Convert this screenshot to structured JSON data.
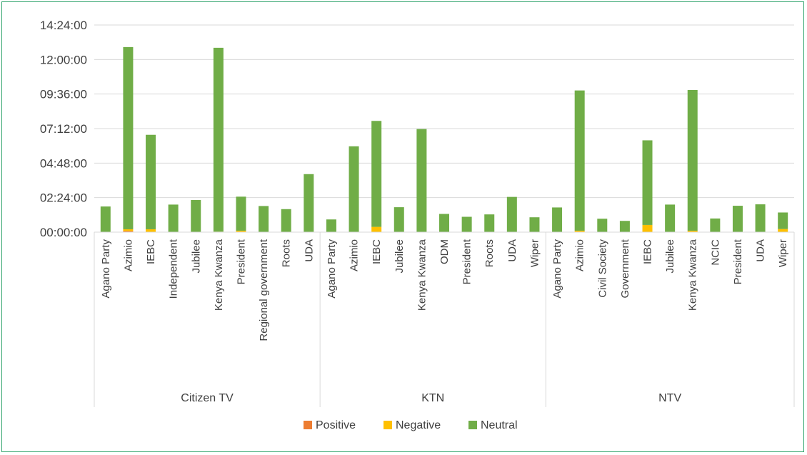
{
  "chart_data": {
    "type": "bar",
    "stacked": true,
    "y_unit": "hh:mm:ss",
    "yticks": [
      "00:00:00",
      "02:24:00",
      "04:48:00",
      "07:12:00",
      "09:36:00",
      "12:00:00",
      "14:24:00"
    ],
    "ylim": [
      "00:00:00",
      "14:24:00"
    ],
    "grid": true,
    "legend_position": "bottom",
    "series": [
      {
        "name": "Positive",
        "color": "#ed7d31"
      },
      {
        "name": "Negative",
        "color": "#ffc000"
      },
      {
        "name": "Neutral",
        "color": "#70ad47"
      }
    ],
    "groups": [
      {
        "name": "Citizen TV",
        "categories": [
          {
            "label": "Agano Party",
            "positive": "00:00:00",
            "negative": "00:00:00",
            "neutral": "01:47:00"
          },
          {
            "label": "Azimio",
            "positive": "00:05:00",
            "negative": "00:07:00",
            "neutral": "12:40:00"
          },
          {
            "label": "IEBC",
            "positive": "00:00:00",
            "negative": "00:12:00",
            "neutral": "06:34:00"
          },
          {
            "label": "Independent",
            "positive": "00:00:00",
            "negative": "00:00:00",
            "neutral": "01:55:00"
          },
          {
            "label": "Jubilee",
            "positive": "00:00:00",
            "negative": "00:00:00",
            "neutral": "02:14:00"
          },
          {
            "label": "Kenya Kwanza",
            "positive": "00:00:00",
            "negative": "00:02:00",
            "neutral": "12:47:00"
          },
          {
            "label": "President",
            "positive": "00:00:00",
            "negative": "00:06:00",
            "neutral": "02:22:00"
          },
          {
            "label": "Regional government",
            "positive": "00:00:00",
            "negative": "00:00:00",
            "neutral": "01:49:00"
          },
          {
            "label": "Roots",
            "positive": "00:00:00",
            "negative": "00:00:00",
            "neutral": "01:36:00"
          },
          {
            "label": "UDA",
            "positive": "00:00:00",
            "negative": "00:00:00",
            "neutral": "04:02:00"
          }
        ]
      },
      {
        "name": "KTN",
        "categories": [
          {
            "label": "Agano Party",
            "positive": "00:00:00",
            "negative": "00:00:00",
            "neutral": "00:53:00"
          },
          {
            "label": "Azimio",
            "positive": "00:00:00",
            "negative": "00:00:00",
            "neutral": "05:58:00"
          },
          {
            "label": "IEBC",
            "positive": "00:00:00",
            "negative": "00:22:00",
            "neutral": "07:22:00"
          },
          {
            "label": "Jubilee",
            "positive": "00:00:00",
            "negative": "00:00:00",
            "neutral": "01:44:00"
          },
          {
            "label": "Kenya Kwanza",
            "positive": "00:00:00",
            "negative": "00:00:00",
            "neutral": "07:10:00"
          },
          {
            "label": "ODM",
            "positive": "00:00:00",
            "negative": "00:00:00",
            "neutral": "01:16:00"
          },
          {
            "label": "President",
            "positive": "00:00:00",
            "negative": "00:00:00",
            "neutral": "01:04:00"
          },
          {
            "label": "Roots",
            "positive": "00:00:00",
            "negative": "00:00:00",
            "neutral": "01:14:00"
          },
          {
            "label": "UDA",
            "positive": "00:00:00",
            "negative": "00:00:00",
            "neutral": "02:27:00"
          },
          {
            "label": "Wiper",
            "positive": "00:00:00",
            "negative": "00:00:00",
            "neutral": "01:02:00"
          }
        ]
      },
      {
        "name": "NTV",
        "categories": [
          {
            "label": "Agano Party",
            "positive": "00:00:00",
            "negative": "00:00:00",
            "neutral": "01:43:00"
          },
          {
            "label": "Azimio",
            "positive": "00:00:00",
            "negative": "00:06:00",
            "neutral": "09:45:00"
          },
          {
            "label": "Civil Society",
            "positive": "00:00:00",
            "negative": "00:00:00",
            "neutral": "00:56:00"
          },
          {
            "label": "Government",
            "positive": "00:00:00",
            "negative": "00:00:00",
            "neutral": "00:47:00"
          },
          {
            "label": "IEBC",
            "positive": "00:00:00",
            "negative": "00:30:00",
            "neutral": "05:53:00"
          },
          {
            "label": "Jubilee",
            "positive": "00:00:00",
            "negative": "00:00:00",
            "neutral": "01:55:00"
          },
          {
            "label": "Kenya Kwanza",
            "positive": "00:00:00",
            "negative": "00:06:00",
            "neutral": "09:47:00"
          },
          {
            "label": "NCIC",
            "positive": "00:00:00",
            "negative": "00:00:00",
            "neutral": "00:57:00"
          },
          {
            "label": "President",
            "positive": "00:00:00",
            "negative": "00:00:00",
            "neutral": "01:50:00"
          },
          {
            "label": "UDA",
            "positive": "00:00:00",
            "negative": "00:00:00",
            "neutral": "01:56:00"
          },
          {
            "label": "Wiper",
            "positive": "00:00:00",
            "negative": "00:13:00",
            "neutral": "01:09:00"
          }
        ]
      }
    ]
  }
}
